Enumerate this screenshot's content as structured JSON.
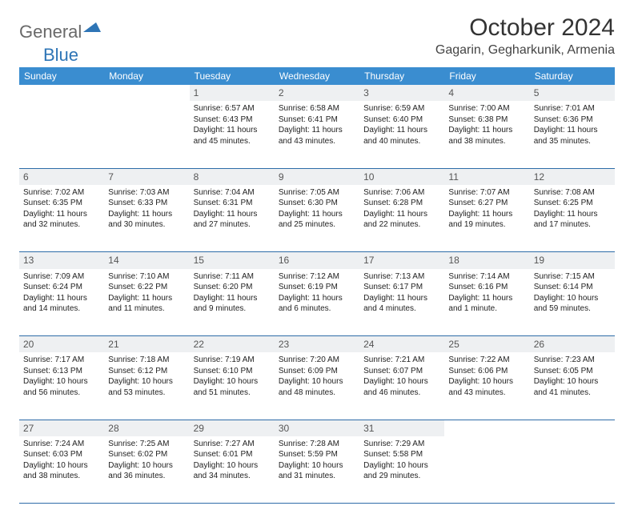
{
  "logo": {
    "part1": "General",
    "part2": "Blue"
  },
  "title": "October 2024",
  "location": "Gagarin, Gegharkunik, Armenia",
  "colors": {
    "header_bg": "#3a8dd0",
    "header_text": "#ffffff",
    "daynum_bg": "#eef0f2",
    "border": "#2e6ca8",
    "logo_gray": "#696969",
    "logo_blue": "#2e75b6"
  },
  "weekdays": [
    "Sunday",
    "Monday",
    "Tuesday",
    "Wednesday",
    "Thursday",
    "Friday",
    "Saturday"
  ],
  "weeks": [
    {
      "nums": [
        "",
        "",
        "1",
        "2",
        "3",
        "4",
        "5"
      ],
      "cells": [
        "",
        "",
        "Sunrise: 6:57 AM\nSunset: 6:43 PM\nDaylight: 11 hours and 45 minutes.",
        "Sunrise: 6:58 AM\nSunset: 6:41 PM\nDaylight: 11 hours and 43 minutes.",
        "Sunrise: 6:59 AM\nSunset: 6:40 PM\nDaylight: 11 hours and 40 minutes.",
        "Sunrise: 7:00 AM\nSunset: 6:38 PM\nDaylight: 11 hours and 38 minutes.",
        "Sunrise: 7:01 AM\nSunset: 6:36 PM\nDaylight: 11 hours and 35 minutes."
      ]
    },
    {
      "nums": [
        "6",
        "7",
        "8",
        "9",
        "10",
        "11",
        "12"
      ],
      "cells": [
        "Sunrise: 7:02 AM\nSunset: 6:35 PM\nDaylight: 11 hours and 32 minutes.",
        "Sunrise: 7:03 AM\nSunset: 6:33 PM\nDaylight: 11 hours and 30 minutes.",
        "Sunrise: 7:04 AM\nSunset: 6:31 PM\nDaylight: 11 hours and 27 minutes.",
        "Sunrise: 7:05 AM\nSunset: 6:30 PM\nDaylight: 11 hours and 25 minutes.",
        "Sunrise: 7:06 AM\nSunset: 6:28 PM\nDaylight: 11 hours and 22 minutes.",
        "Sunrise: 7:07 AM\nSunset: 6:27 PM\nDaylight: 11 hours and 19 minutes.",
        "Sunrise: 7:08 AM\nSunset: 6:25 PM\nDaylight: 11 hours and 17 minutes."
      ]
    },
    {
      "nums": [
        "13",
        "14",
        "15",
        "16",
        "17",
        "18",
        "19"
      ],
      "cells": [
        "Sunrise: 7:09 AM\nSunset: 6:24 PM\nDaylight: 11 hours and 14 minutes.",
        "Sunrise: 7:10 AM\nSunset: 6:22 PM\nDaylight: 11 hours and 11 minutes.",
        "Sunrise: 7:11 AM\nSunset: 6:20 PM\nDaylight: 11 hours and 9 minutes.",
        "Sunrise: 7:12 AM\nSunset: 6:19 PM\nDaylight: 11 hours and 6 minutes.",
        "Sunrise: 7:13 AM\nSunset: 6:17 PM\nDaylight: 11 hours and 4 minutes.",
        "Sunrise: 7:14 AM\nSunset: 6:16 PM\nDaylight: 11 hours and 1 minute.",
        "Sunrise: 7:15 AM\nSunset: 6:14 PM\nDaylight: 10 hours and 59 minutes."
      ]
    },
    {
      "nums": [
        "20",
        "21",
        "22",
        "23",
        "24",
        "25",
        "26"
      ],
      "cells": [
        "Sunrise: 7:17 AM\nSunset: 6:13 PM\nDaylight: 10 hours and 56 minutes.",
        "Sunrise: 7:18 AM\nSunset: 6:12 PM\nDaylight: 10 hours and 53 minutes.",
        "Sunrise: 7:19 AM\nSunset: 6:10 PM\nDaylight: 10 hours and 51 minutes.",
        "Sunrise: 7:20 AM\nSunset: 6:09 PM\nDaylight: 10 hours and 48 minutes.",
        "Sunrise: 7:21 AM\nSunset: 6:07 PM\nDaylight: 10 hours and 46 minutes.",
        "Sunrise: 7:22 AM\nSunset: 6:06 PM\nDaylight: 10 hours and 43 minutes.",
        "Sunrise: 7:23 AM\nSunset: 6:05 PM\nDaylight: 10 hours and 41 minutes."
      ]
    },
    {
      "nums": [
        "27",
        "28",
        "29",
        "30",
        "31",
        "",
        ""
      ],
      "cells": [
        "Sunrise: 7:24 AM\nSunset: 6:03 PM\nDaylight: 10 hours and 38 minutes.",
        "Sunrise: 7:25 AM\nSunset: 6:02 PM\nDaylight: 10 hours and 36 minutes.",
        "Sunrise: 7:27 AM\nSunset: 6:01 PM\nDaylight: 10 hours and 34 minutes.",
        "Sunrise: 7:28 AM\nSunset: 5:59 PM\nDaylight: 10 hours and 31 minutes.",
        "Sunrise: 7:29 AM\nSunset: 5:58 PM\nDaylight: 10 hours and 29 minutes.",
        "",
        ""
      ]
    }
  ]
}
